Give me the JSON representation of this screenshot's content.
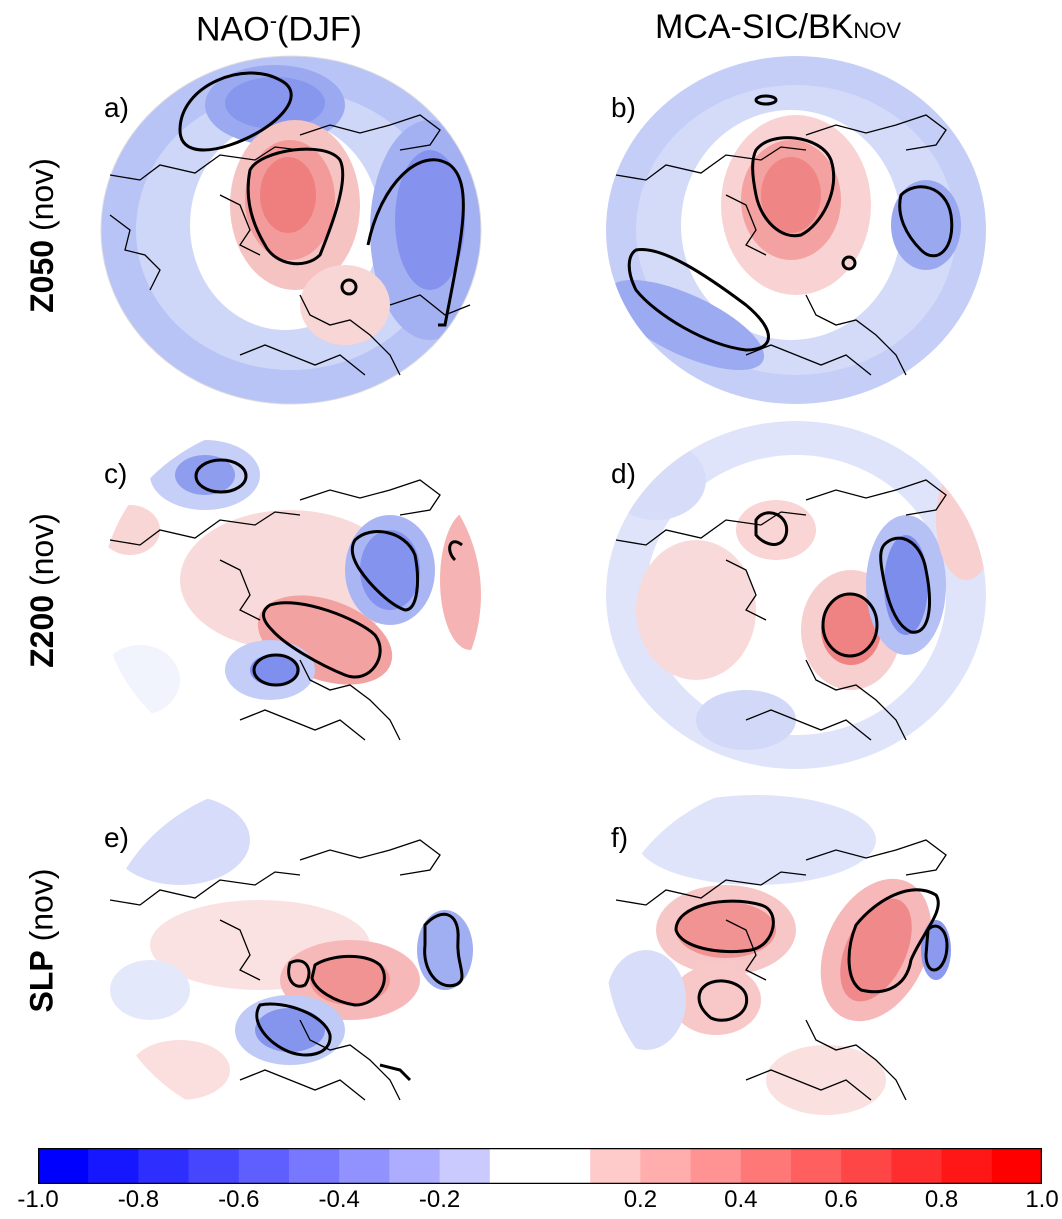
{
  "columns": [
    {
      "title_main": "NAO",
      "title_sup": "-",
      "title_rest": "(DJF)"
    },
    {
      "title_main": "MCA-SIC/BK",
      "title_sub": "NOV"
    }
  ],
  "rows": [
    {
      "bold": "Z050",
      "rest": " (nov)"
    },
    {
      "bold": "Z200",
      "rest": " (nov)"
    },
    {
      "bold": "SLP",
      "rest": " (nov)"
    }
  ],
  "panels": [
    {
      "label": "a)",
      "field": "Z050 (nov)",
      "pattern": "NAO-(DJF)"
    },
    {
      "label": "b)",
      "field": "Z050 (nov)",
      "pattern": "MCA-SIC/BK NOV"
    },
    {
      "label": "c)",
      "field": "Z200 (nov)",
      "pattern": "NAO-(DJF)"
    },
    {
      "label": "d)",
      "field": "Z200 (nov)",
      "pattern": "MCA-SIC/BK NOV"
    },
    {
      "label": "e)",
      "field": "SLP (nov)",
      "pattern": "NAO-(DJF)"
    },
    {
      "label": "f)",
      "field": "SLP (nov)",
      "pattern": "MCA-SIC/BK NOV"
    }
  ],
  "colorbar": {
    "min": -1.0,
    "max": 1.0,
    "step": 0.1,
    "white_band": [
      -0.1,
      0.1
    ],
    "negative_color": "#0000ff",
    "positive_color": "#ff0000",
    "tick_labels": [
      "-1.0",
      "-0.8",
      "-0.6",
      "-0.4",
      "-0.2",
      "0.2",
      "0.4",
      "0.6",
      "0.8",
      "1.0"
    ],
    "tick_values": [
      -1.0,
      -0.8,
      -0.6,
      -0.4,
      -0.2,
      0.2,
      0.4,
      0.6,
      0.8,
      1.0
    ]
  }
}
